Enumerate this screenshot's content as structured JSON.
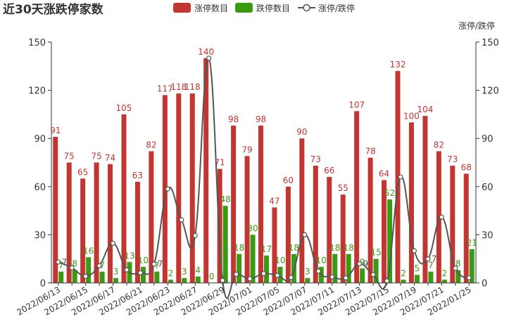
{
  "colors": {
    "red": "#c23531",
    "green": "#3a9a12",
    "line": "#555555",
    "axis": "#333333"
  },
  "chart_data": {
    "type": "bar",
    "title": "近30天涨跌停家数",
    "right_axis_label": "涨停/跌停",
    "left_ylim": [
      0,
      150
    ],
    "right_ylim": [
      0,
      150
    ],
    "ticks": [
      "0",
      "30",
      "60",
      "90",
      "120",
      "150"
    ],
    "grid": false,
    "legend_position": "top-center",
    "series": [
      {
        "name": "涨停数目",
        "kind": "bar",
        "color": "#c23531",
        "values": [
          91,
          75,
          65,
          75,
          74,
          105,
          63,
          82,
          117,
          118,
          118,
          140,
          71,
          98,
          79,
          98,
          47,
          60,
          90,
          73,
          66,
          55,
          107,
          78,
          64,
          132,
          100,
          104,
          82,
          73,
          68
        ]
      },
      {
        "name": "跌停数目",
        "kind": "bar",
        "color": "#3a9a12",
        "values": [
          7,
          8,
          16,
          7,
          3,
          13,
          10,
          7,
          2,
          3,
          4,
          0,
          48,
          18,
          30,
          17,
          10,
          18,
          3,
          10,
          18,
          18,
          9,
          15,
          52,
          2,
          5,
          7,
          2,
          8,
          21
        ]
      },
      {
        "name": "涨停/跌停",
        "kind": "line",
        "axis": "right",
        "color": "#555555",
        "values": [
          13,
          9.4,
          4.1,
          10.7,
          24.7,
          8.1,
          6.3,
          11.7,
          58.5,
          39.3,
          29.5,
          140,
          1.5,
          5.4,
          2.6,
          5.8,
          4.7,
          3.3,
          30,
          7.3,
          3.7,
          3.1,
          11.9,
          5.2,
          1.2,
          66,
          20,
          14.9,
          41,
          9.1,
          3.2
        ],
        "labeled_points": [
          {
            "index": 0,
            "label": "7"
          },
          {
            "index": 7,
            "label": "7"
          },
          {
            "index": 22,
            "label": "9"
          },
          {
            "index": 27,
            "label": "7"
          }
        ]
      }
    ],
    "x_tick_labels": [
      "2022/06/13",
      "2022/06/15",
      "2022/06/17",
      "2022/06/21",
      "2022/06/23",
      "2022/06/27",
      "2022/06/29",
      "2022/07/01",
      "2022/07/05",
      "2022/07/07",
      "2022/07/11",
      "2022/07/13",
      "2022/07/15",
      "2022/07/19",
      "2022/07/21",
      "2022/01/25"
    ]
  }
}
